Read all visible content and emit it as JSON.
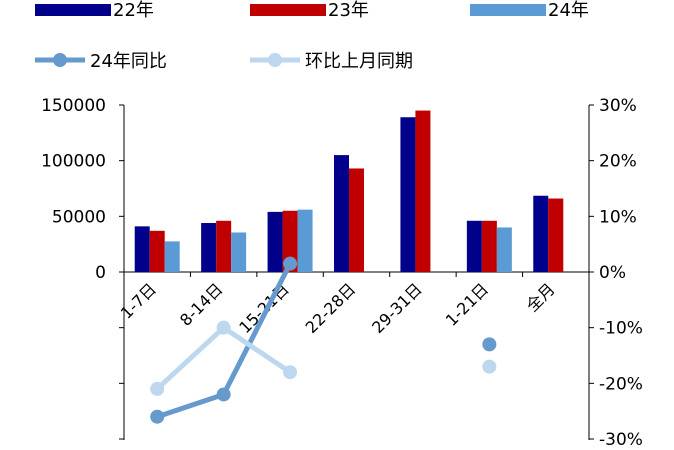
{
  "chart_data": {
    "type": "bar",
    "categories": [
      "1-7日",
      "8-14日",
      "15-21日",
      "22-28日",
      "29-31日",
      "1-21日",
      "全月"
    ],
    "bar_series": [
      {
        "name": "22年",
        "color": "#00008B",
        "values": [
          41000,
          44000,
          54000,
          105000,
          139000,
          46000,
          68500
        ]
      },
      {
        "name": "23年",
        "color": "#C00000",
        "values": [
          37000,
          46000,
          55000,
          93000,
          145000,
          46000,
          66000
        ]
      },
      {
        "name": "24年",
        "color": "#5B9BD5",
        "values": [
          27500,
          35500,
          56000,
          null,
          null,
          40000,
          null
        ]
      }
    ],
    "line_series": [
      {
        "name": "24年同比",
        "color": "#6699CC",
        "values": [
          -26,
          -22,
          1.5,
          null,
          null,
          -13,
          null
        ]
      },
      {
        "name": "环比上月同期",
        "color": "#BDD7EE",
        "values": [
          -21,
          -10,
          -18,
          null,
          null,
          -17,
          null
        ]
      }
    ],
    "y_left": {
      "ticks": [
        "0",
        "50000",
        "100000",
        "150000"
      ],
      "lim": [
        -150000,
        150000
      ]
    },
    "y_right": {
      "ticks": [
        "-30%",
        "-20%",
        "-10%",
        "0%",
        "10%",
        "20%",
        "30%"
      ],
      "lim": [
        -30,
        30
      ]
    },
    "legend_position": "top"
  }
}
